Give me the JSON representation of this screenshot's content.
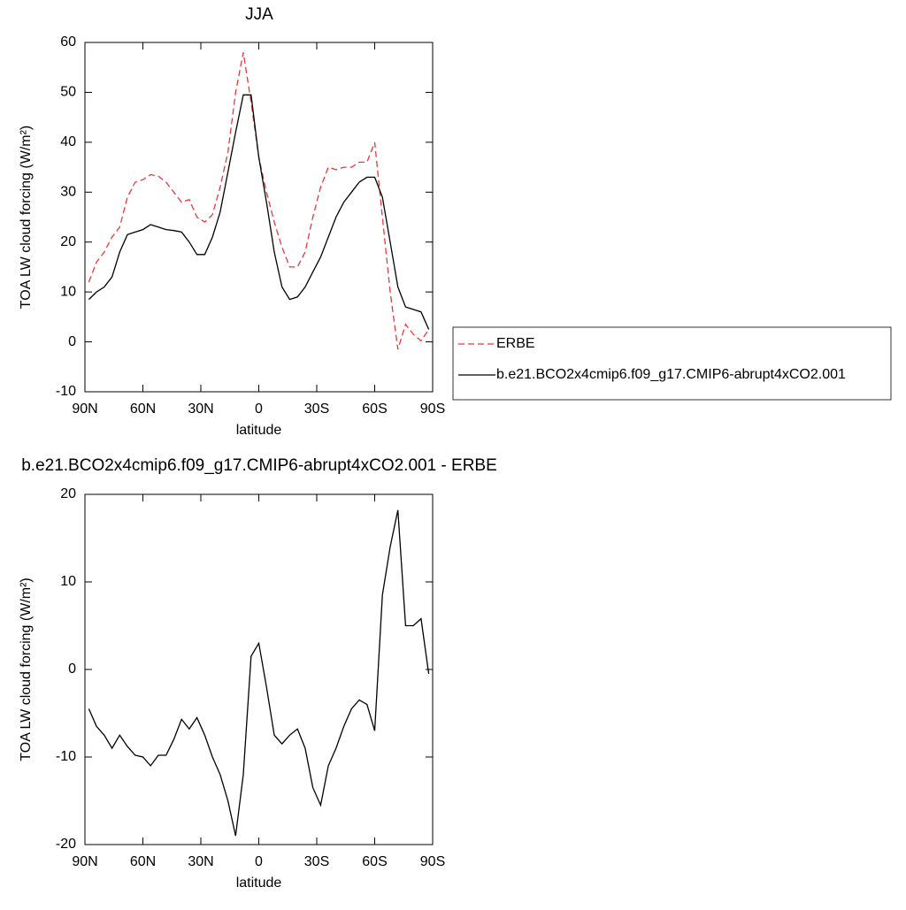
{
  "chart_data": [
    {
      "type": "line",
      "title": "JJA",
      "xlabel": "latitude",
      "ylabel": "TOA LW cloud forcing (W/m²)",
      "x": [
        88,
        84,
        80,
        76,
        72,
        68,
        64,
        60,
        56,
        52,
        48,
        44,
        40,
        36,
        32,
        28,
        24,
        20,
        16,
        12,
        8,
        4,
        0,
        -4,
        -8,
        -12,
        -16,
        -20,
        -24,
        -28,
        -32,
        -36,
        -40,
        -44,
        -48,
        -52,
        -56,
        -60,
        -64,
        -68,
        -72,
        -76,
        -80,
        -84,
        -88
      ],
      "xlim": [
        90,
        -90
      ],
      "xticks": [
        {
          "value": 90,
          "label": "90N"
        },
        {
          "value": 60,
          "label": "60N"
        },
        {
          "value": 30,
          "label": "30N"
        },
        0,
        {
          "value": -30,
          "label": "30S"
        },
        {
          "value": -60,
          "label": "60S"
        },
        {
          "value": -90,
          "label": "90S"
        }
      ],
      "ylim": [
        -10,
        60
      ],
      "yticks": [
        -10,
        0,
        10,
        20,
        30,
        40,
        50,
        60
      ],
      "legend": "right",
      "series": [
        {
          "name": "ERBE",
          "color": "#e8383d",
          "dashed": true,
          "values": [
            12,
            16,
            18,
            21,
            23,
            29,
            32,
            32.5,
            33.5,
            33.2,
            32,
            30,
            28,
            28.5,
            25,
            24,
            25.5,
            31,
            38,
            50,
            58,
            48,
            37,
            30,
            24,
            19,
            15,
            15,
            18,
            25,
            31,
            35,
            34.5,
            35,
            35,
            36,
            36,
            40,
            25,
            10,
            -1.5,
            3.5,
            1.5,
            0.2,
            2.5
          ]
        },
        {
          "name": "b.e21.BCO2x4cmip6.f09_g17.CMIP6-abrupt4xCO2.001",
          "color": "#000000",
          "dashed": false,
          "values": [
            8.5,
            10,
            11,
            13,
            18,
            21.5,
            22,
            22.5,
            23.5,
            23,
            22.5,
            22.3,
            22,
            20,
            17.5,
            17.5,
            21,
            26,
            34,
            42,
            49.5,
            49.5,
            37,
            28,
            18,
            11,
            8.5,
            9,
            11,
            14,
            17,
            21,
            25,
            28,
            30,
            32,
            33,
            33,
            29,
            20,
            11,
            7,
            6.5,
            6,
            2.5
          ]
        }
      ]
    },
    {
      "type": "line",
      "title": "b.e21.BCO2x4cmip6.f09_g17.CMIP6-abrupt4xCO2.001 - ERBE",
      "xlabel": "latitude",
      "ylabel": "TOA LW cloud forcing (W/m²)",
      "x": [
        88,
        84,
        80,
        76,
        72,
        68,
        64,
        60,
        56,
        52,
        48,
        44,
        40,
        36,
        32,
        28,
        24,
        20,
        16,
        12,
        8,
        4,
        0,
        -4,
        -8,
        -12,
        -16,
        -20,
        -24,
        -28,
        -32,
        -36,
        -40,
        -44,
        -48,
        -52,
        -56,
        -60,
        -64,
        -68,
        -72,
        -76,
        -80,
        -84,
        -88
      ],
      "xlim": [
        90,
        -90
      ],
      "xticks": [
        {
          "value": 90,
          "label": "90N"
        },
        {
          "value": 60,
          "label": "60N"
        },
        {
          "value": 30,
          "label": "30N"
        },
        0,
        {
          "value": -30,
          "label": "30S"
        },
        {
          "value": -60,
          "label": "60S"
        },
        {
          "value": -90,
          "label": "90S"
        }
      ],
      "ylim": [
        -20,
        20
      ],
      "yticks": [
        -20,
        -10,
        0,
        10,
        20
      ],
      "series": [
        {
          "color": "#000000",
          "dashed": false,
          "values": [
            -4.5,
            -6.5,
            -7.5,
            -9,
            -7.5,
            -8.8,
            -9.8,
            -10,
            -11,
            -9.8,
            -9.8,
            -8,
            -5.7,
            -6.8,
            -5.5,
            -7.5,
            -10,
            -12,
            -15,
            -19,
            -12,
            1.5,
            3,
            -2,
            -7.5,
            -8.5,
            -7.5,
            -6.8,
            -9,
            -13.5,
            -15.5,
            -11,
            -9,
            -6.5,
            -4.5,
            -3.5,
            -4,
            -7,
            8.5,
            14,
            18.2,
            5,
            5,
            5.8,
            -0.5
          ]
        }
      ]
    }
  ]
}
